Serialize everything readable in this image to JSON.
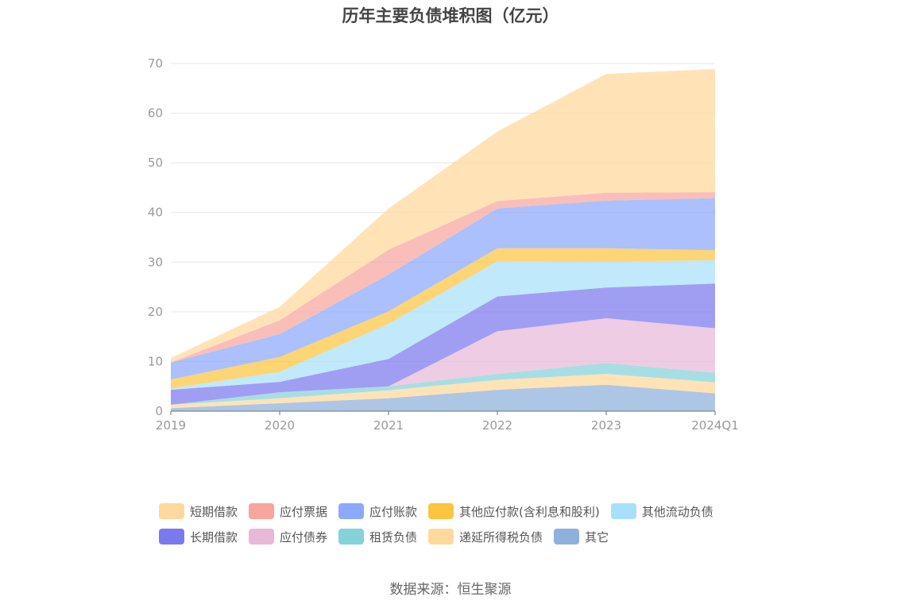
{
  "title": "历年主要负债堆积图（亿元）",
  "source": "数据来源：恒生聚源",
  "chart_data": {
    "type": "area",
    "stacked": true,
    "title": "历年主要负债堆积图（亿元）",
    "categories": [
      "2019",
      "2020",
      "2021",
      "2022",
      "2023",
      "2024Q1"
    ],
    "ylim": [
      0,
      70
    ],
    "yticks": [
      0,
      10,
      20,
      30,
      40,
      50,
      60,
      70
    ],
    "grid": true,
    "legend_position": "bottom",
    "series": [
      {
        "name": "其它",
        "color": "#8fb0db",
        "values": [
          0.6,
          1.6,
          2.6,
          4.3,
          5.3,
          3.6
        ]
      },
      {
        "name": "递延所得税负债",
        "color": "#ffd89b",
        "values": [
          0.7,
          1.0,
          1.6,
          2.0,
          2.2,
          2.2
        ]
      },
      {
        "name": "租赁负债",
        "color": "#84d3d8",
        "values": [
          0.0,
          1.2,
          0.8,
          1.2,
          2.2,
          1.9
        ]
      },
      {
        "name": "应付债券",
        "color": "#e8b8d8",
        "values": [
          0.0,
          0.0,
          0.0,
          8.6,
          9.0,
          9.0
        ]
      },
      {
        "name": "长期借款",
        "color": "#7b79ee",
        "values": [
          3.0,
          2.1,
          5.5,
          7.0,
          6.2,
          9.0
        ]
      },
      {
        "name": "其他流动负债",
        "color": "#a8e0fa",
        "values": [
          0.3,
          2.0,
          7.1,
          7.1,
          5.2,
          4.7
        ]
      },
      {
        "name": "其他应付款(含利息和股利)",
        "color": "#fcc53f",
        "values": [
          1.8,
          3.0,
          2.5,
          2.6,
          2.7,
          2.0
        ]
      },
      {
        "name": "应付账款",
        "color": "#8ba8fb",
        "values": [
          3.4,
          4.6,
          7.4,
          8.0,
          9.6,
          10.5
        ]
      },
      {
        "name": "应付票据",
        "color": "#f8a59e",
        "values": [
          0.0,
          2.8,
          5.0,
          1.5,
          1.6,
          1.2
        ]
      },
      {
        "name": "短期借款",
        "color": "#ffd89b",
        "values": [
          0.9,
          2.7,
          8.3,
          14.0,
          23.9,
          24.8
        ]
      }
    ]
  },
  "legend": [
    {
      "label": "短期借款",
      "color": "#ffd89b"
    },
    {
      "label": "应付票据",
      "color": "#f8a59e"
    },
    {
      "label": "应付账款",
      "color": "#8ba8fb"
    },
    {
      "label": "其他应付款(含利息和股利)",
      "color": "#fcc53f"
    },
    {
      "label": "其他流动负债",
      "color": "#a8e0fa"
    },
    {
      "label": "长期借款",
      "color": "#7b79ee"
    },
    {
      "label": "应付债券",
      "color": "#e8b8d8"
    },
    {
      "label": "租赁负债",
      "color": "#84d3d8"
    },
    {
      "label": "递延所得税负债",
      "color": "#ffd89b"
    },
    {
      "label": "其它",
      "color": "#8fb0db"
    }
  ]
}
